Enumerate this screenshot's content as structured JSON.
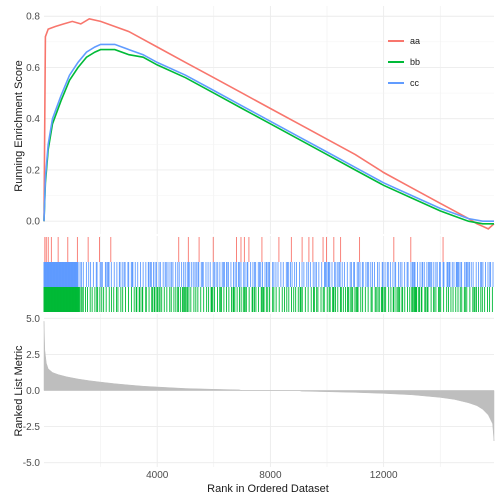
{
  "chart_data": [
    {
      "type": "line",
      "ylabel": "Running Enrichment Score",
      "ylim": [
        -0.05,
        0.84
      ],
      "yticks": [
        "0.0",
        "0.2",
        "0.4",
        "0.6",
        "0.8"
      ],
      "ytick_values": [
        0.0,
        0.2,
        0.4,
        0.6,
        0.8
      ],
      "grid": true,
      "legend_position": "top-right",
      "series": [
        {
          "name": "aa",
          "color": "#f8766d",
          "x": [
            0,
            50,
            150,
            400,
            700,
            1000,
            1300,
            1600,
            2000,
            2500,
            3000,
            3500,
            4000,
            5000,
            6000,
            7000,
            8000,
            9000,
            10000,
            11000,
            12000,
            13000,
            14000,
            14500,
            15000,
            15300,
            15500,
            15700,
            15900
          ],
          "y": [
            0.0,
            0.72,
            0.75,
            0.76,
            0.77,
            0.78,
            0.77,
            0.79,
            0.78,
            0.76,
            0.74,
            0.71,
            0.68,
            0.62,
            0.56,
            0.5,
            0.44,
            0.38,
            0.32,
            0.26,
            0.19,
            0.13,
            0.07,
            0.04,
            0.01,
            -0.01,
            -0.02,
            -0.03,
            -0.01
          ]
        },
        {
          "name": "bb",
          "color": "#00ba38",
          "x": [
            0,
            50,
            150,
            300,
            600,
            900,
            1200,
            1500,
            1800,
            2000,
            2500,
            3000,
            3500,
            4000,
            5000,
            6000,
            7000,
            8000,
            9000,
            10000,
            11000,
            12000,
            13000,
            14000,
            14500,
            15000,
            15500,
            15900
          ],
          "y": [
            0.0,
            0.15,
            0.28,
            0.38,
            0.47,
            0.55,
            0.6,
            0.64,
            0.66,
            0.67,
            0.67,
            0.65,
            0.64,
            0.61,
            0.56,
            0.5,
            0.44,
            0.38,
            0.32,
            0.26,
            0.2,
            0.14,
            0.09,
            0.04,
            0.02,
            0.0,
            -0.01,
            -0.01
          ]
        },
        {
          "name": "cc",
          "color": "#619cff",
          "x": [
            0,
            50,
            150,
            300,
            600,
            900,
            1200,
            1500,
            1800,
            2000,
            2500,
            3000,
            3500,
            4000,
            5000,
            6000,
            7000,
            8000,
            9000,
            10000,
            11000,
            12000,
            13000,
            14000,
            14500,
            15000,
            15500,
            15900
          ],
          "y": [
            0.0,
            0.17,
            0.3,
            0.4,
            0.49,
            0.57,
            0.62,
            0.66,
            0.68,
            0.69,
            0.69,
            0.67,
            0.65,
            0.62,
            0.57,
            0.51,
            0.45,
            0.39,
            0.33,
            0.27,
            0.21,
            0.15,
            0.1,
            0.05,
            0.03,
            0.01,
            0.0,
            0.0
          ]
        }
      ]
    },
    {
      "type": "rug",
      "xlim": [
        0,
        15900
      ],
      "grid": true,
      "series": [
        {
          "name": "aa",
          "color": "#f8766d",
          "positions": [
            30,
            80,
            150,
            260,
            500,
            840,
            1180,
            1560,
            1960,
            2360,
            4760,
            5100,
            5480,
            5980,
            6800,
            6960,
            7080,
            7240,
            7700,
            8300,
            8740,
            9120,
            9360,
            9500,
            9860,
            9980,
            10240,
            10480,
            11150,
            12360,
            12960,
            14100
          ]
        },
        {
          "name": "cc",
          "color": "#619cff"
        },
        {
          "name": "bb",
          "color": "#00ba38"
        }
      ]
    },
    {
      "type": "area",
      "xlabel": "Rank in Ordered Dataset",
      "ylabel": "Ranked List Metric",
      "xlim": [
        0,
        15900
      ],
      "ylim": [
        -5.3,
        5.3
      ],
      "xticks": [
        "4000",
        "8000",
        "12000"
      ],
      "xtick_values": [
        4000,
        8000,
        12000
      ],
      "yticks": [
        "-5.0",
        "-2.5",
        "0.0",
        "2.5",
        "5.0"
      ],
      "ytick_values": [
        -5,
        -2.5,
        0,
        2.5,
        5
      ],
      "grid": true,
      "color": "#bebebe",
      "x": [
        0,
        30,
        80,
        150,
        300,
        500,
        800,
        1200,
        1600,
        2000,
        2500,
        3000,
        3500,
        4000,
        5000,
        6000,
        6900,
        7000,
        9000,
        9100,
        10000,
        11000,
        12000,
        13000,
        14000,
        14500,
        15000,
        15300,
        15500,
        15700,
        15850,
        15900
      ],
      "y": [
        4.8,
        2.8,
        1.9,
        1.5,
        1.25,
        1.1,
        0.95,
        0.8,
        0.68,
        0.58,
        0.47,
        0.38,
        0.3,
        0.24,
        0.14,
        0.08,
        0.04,
        0.0,
        0.0,
        -0.04,
        -0.08,
        -0.13,
        -0.2,
        -0.3,
        -0.48,
        -0.62,
        -0.85,
        -1.05,
        -1.3,
        -1.7,
        -2.3,
        -3.5
      ]
    }
  ]
}
